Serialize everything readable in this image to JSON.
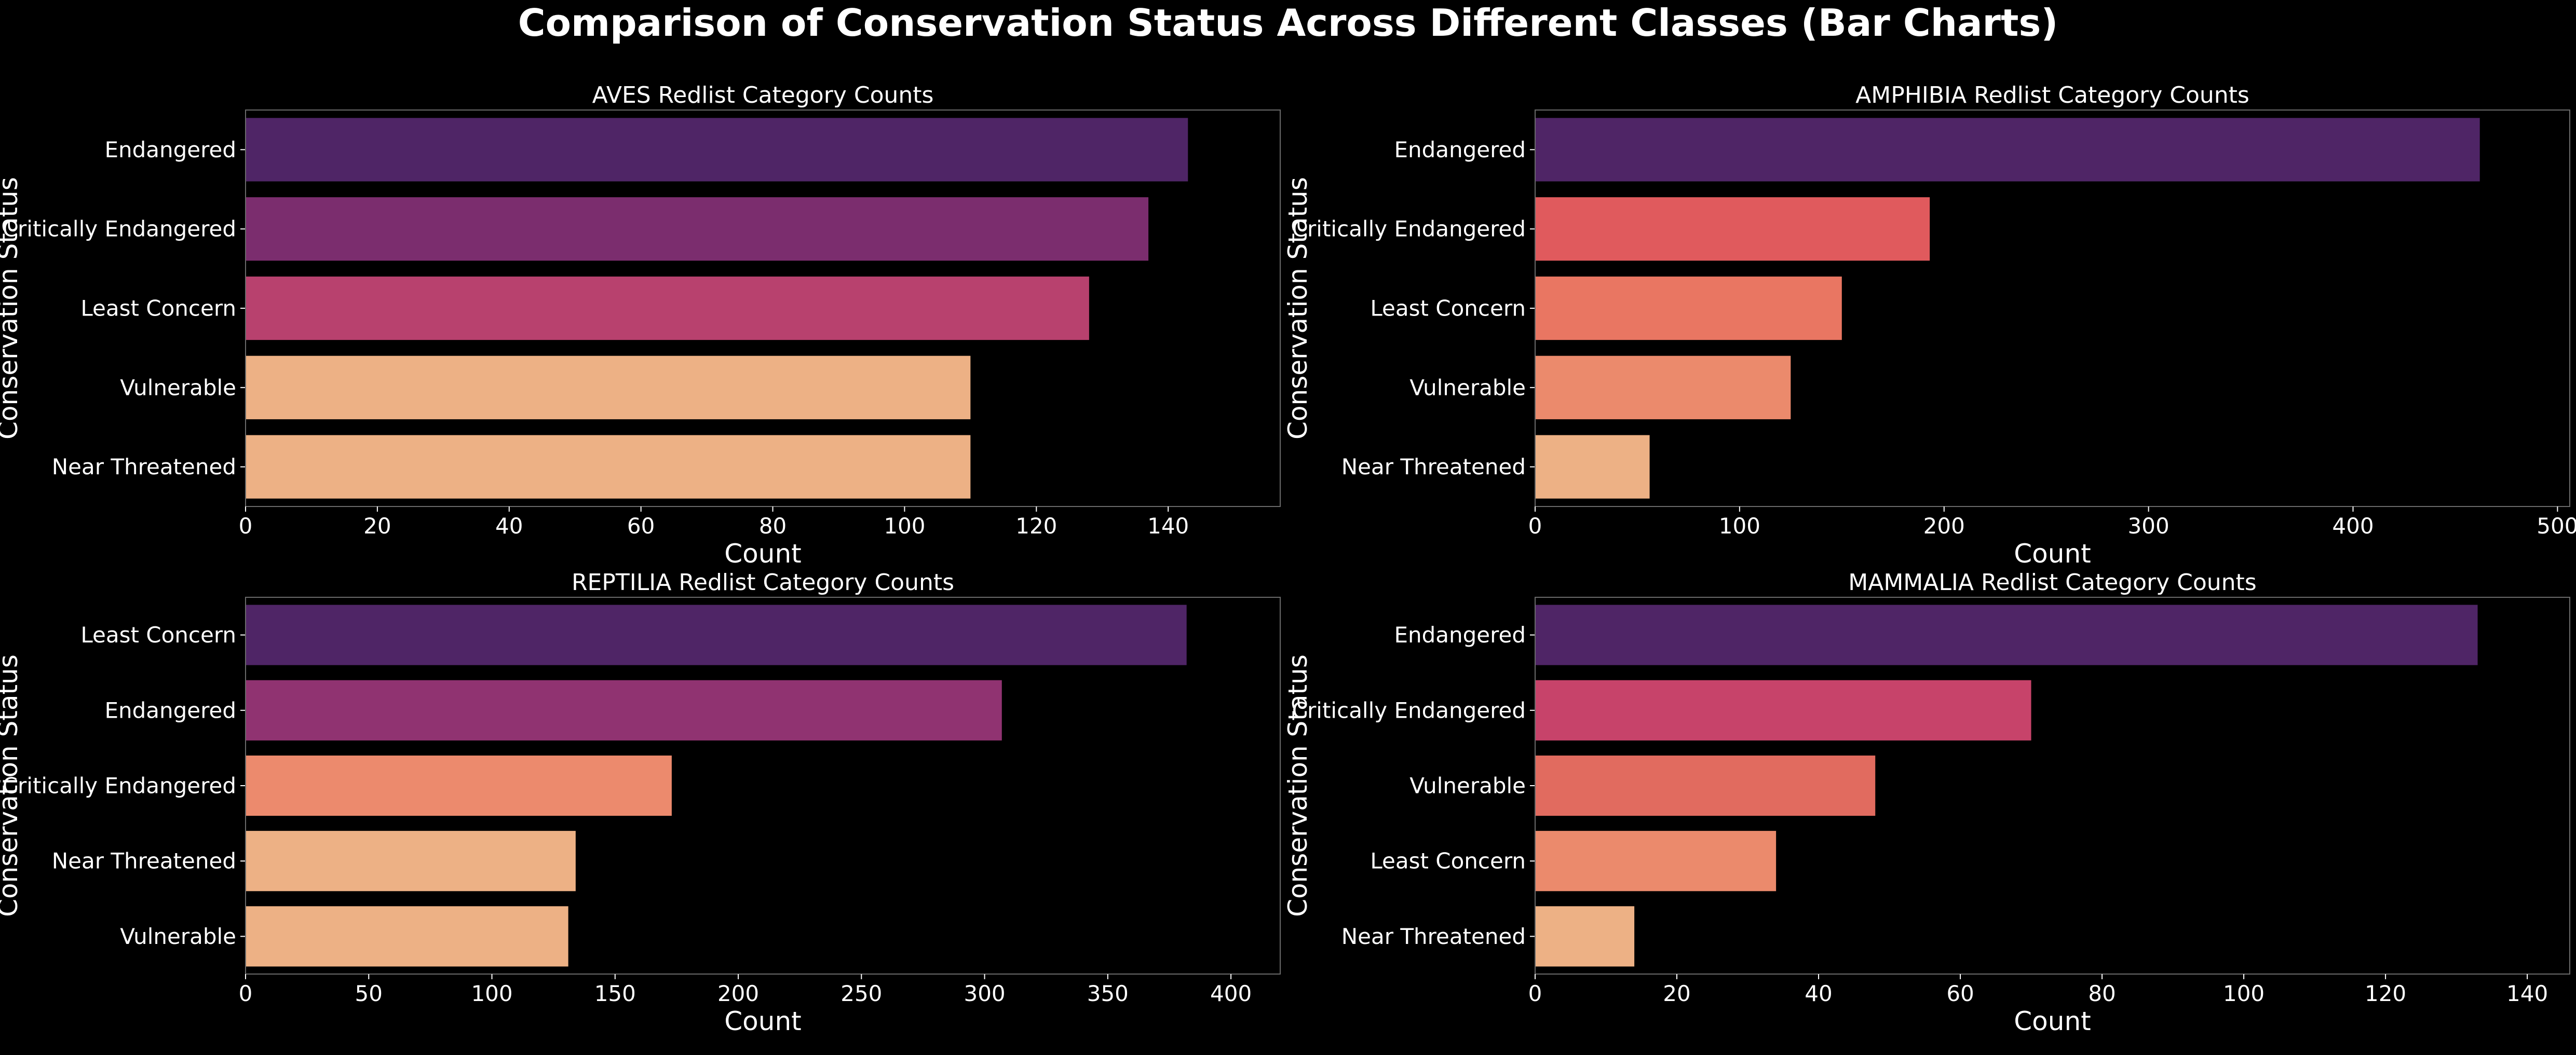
{
  "suptitle": "Comparison of Conservation Status Across Different Classes (Bar Charts)",
  "chart_data": [
    {
      "type": "bar",
      "orientation": "horizontal",
      "title": "AVES Redlist Category Counts",
      "xlabel": "Count",
      "ylabel": "Conservation Status",
      "xlim": [
        0,
        157
      ],
      "xticks": [
        0,
        20,
        40,
        60,
        80,
        100,
        120,
        140
      ],
      "categories": [
        "Endangered",
        "Critically Endangered",
        "Least Concern",
        "Vulnerable",
        "Near Threatened"
      ],
      "values": [
        143,
        137,
        128,
        110,
        110
      ],
      "colors": [
        "#4f2566",
        "#7b2d6e",
        "#b8416e",
        "#edb185",
        "#edb185"
      ],
      "grid": false
    },
    {
      "type": "bar",
      "orientation": "horizontal",
      "title": "AMPHIBIA Redlist Category Counts",
      "xlabel": "Count",
      "ylabel": "Conservation Status",
      "xlim": [
        0,
        506
      ],
      "xticks": [
        0,
        100,
        200,
        300,
        400,
        500
      ],
      "categories": [
        "Endangered",
        "Critically Endangered",
        "Least Concern",
        "Vulnerable",
        "Near Threatened"
      ],
      "values": [
        462,
        193,
        150,
        125,
        56
      ],
      "colors": [
        "#4f2566",
        "#e05a5d",
        "#e97662",
        "#eb8a6c",
        "#edb185"
      ],
      "grid": false
    },
    {
      "type": "bar",
      "orientation": "horizontal",
      "title": "REPTILIA Redlist Category Counts",
      "xlabel": "Count",
      "ylabel": "Conservation Status",
      "xlim": [
        0,
        420
      ],
      "xticks": [
        0,
        50,
        100,
        150,
        200,
        250,
        300,
        350,
        400
      ],
      "categories": [
        "Least Concern",
        "Endangered",
        "Critically Endangered",
        "Near Threatened",
        "Vulnerable"
      ],
      "values": [
        382,
        307,
        173,
        134,
        131
      ],
      "colors": [
        "#4f2566",
        "#903371",
        "#ec8a6d",
        "#edb185",
        "#edb185"
      ],
      "grid": false
    },
    {
      "type": "bar",
      "orientation": "horizontal",
      "title": "MAMMALIA Redlist Category Counts",
      "xlabel": "Count",
      "ylabel": "Conservation Status",
      "xlim": [
        0,
        146
      ],
      "xticks": [
        0,
        20,
        40,
        60,
        80,
        100,
        120,
        140
      ],
      "categories": [
        "Endangered",
        "Critically Endangered",
        "Vulnerable",
        "Least Concern",
        "Near Threatened"
      ],
      "values": [
        133,
        70,
        48,
        34,
        14
      ],
      "colors": [
        "#4f2566",
        "#c7436a",
        "#e16b5f",
        "#eb8a6c",
        "#edb185"
      ],
      "grid": false
    }
  ]
}
